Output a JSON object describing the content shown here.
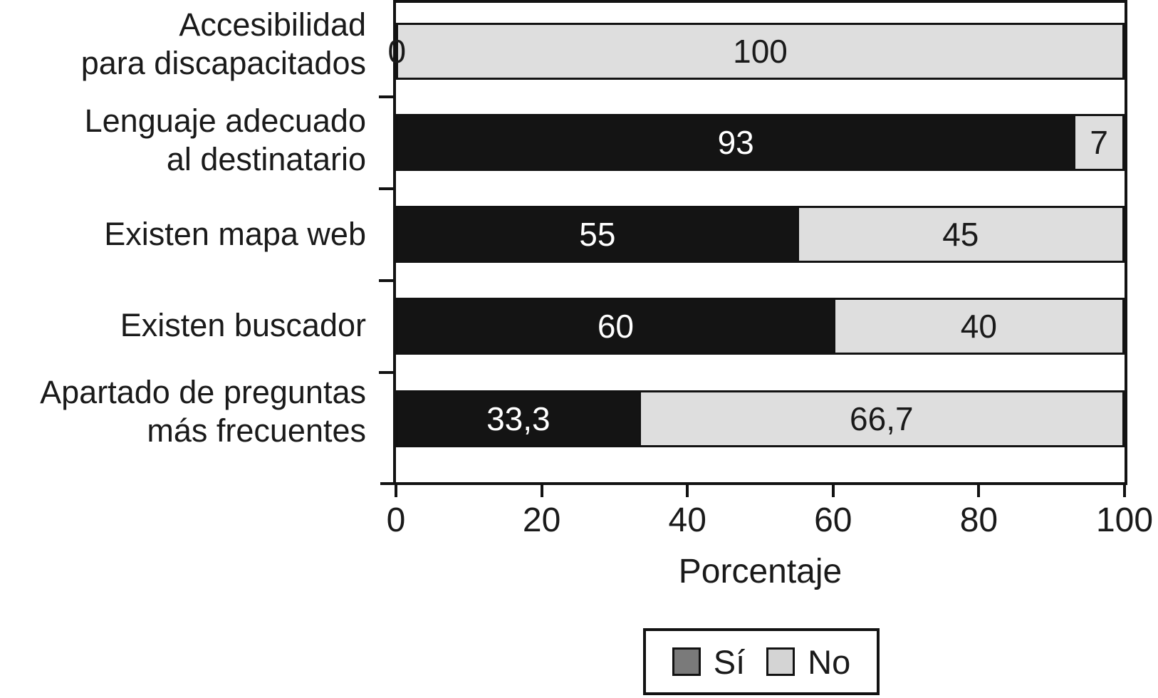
{
  "chart_data": {
    "type": "bar",
    "orientation": "horizontal",
    "stacked": true,
    "title": "",
    "xlabel": "Porcentaje",
    "ylabel": "",
    "xlim": [
      0,
      100
    ],
    "x_ticks": [
      "0",
      "20",
      "40",
      "60",
      "80",
      "100"
    ],
    "grid": false,
    "categories": [
      "Accesibilidad para discapacitados",
      "Lenguaje adecuado al destinatario",
      "Existen mapa web",
      "Existen buscador",
      "Apartado de preguntas más frecuentes"
    ],
    "category_lines": [
      [
        "Accesibilidad",
        "para discapacitados"
      ],
      [
        "Lenguaje adecuado",
        "al destinatario"
      ],
      [
        "Existen mapa web",
        ""
      ],
      [
        "Existen buscador",
        ""
      ],
      [
        "Apartado de preguntas",
        "más frecuentes"
      ]
    ],
    "series": [
      {
        "name": "Sí",
        "values": [
          0,
          93,
          55,
          60,
          33.3
        ],
        "color": "#141414"
      },
      {
        "name": "No",
        "values": [
          100,
          7,
          45,
          40,
          66.7
        ],
        "color": "#dedede"
      }
    ],
    "value_labels": {
      "si": [
        "0",
        "93",
        "55",
        "60",
        "33,3"
      ],
      "no": [
        "100",
        "7",
        "45",
        "40",
        "66,7"
      ]
    },
    "legend": {
      "position": "bottom",
      "si_label": "Sí",
      "no_label": "No",
      "si_swatch_color": "#7a7a7a",
      "no_swatch_color": "#d4d4d4"
    }
  }
}
